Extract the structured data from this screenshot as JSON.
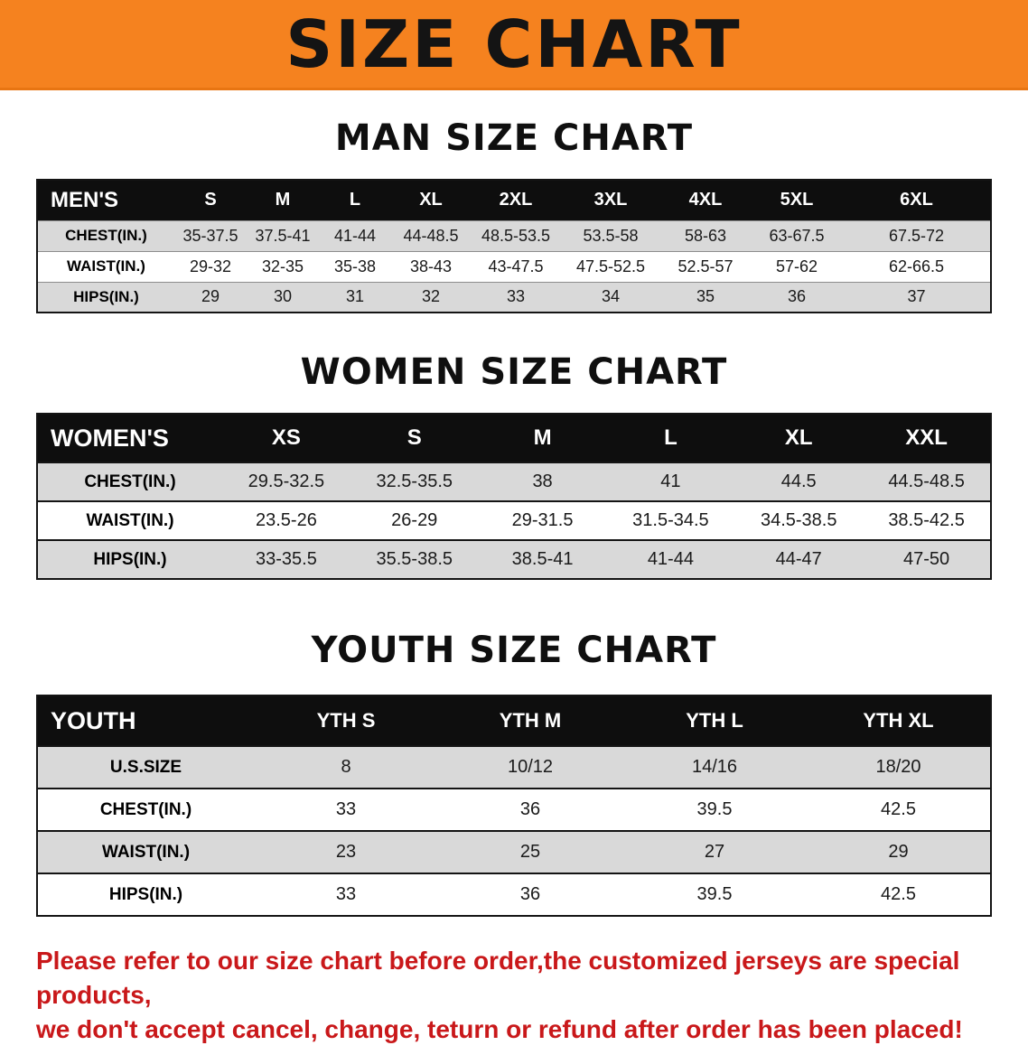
{
  "banner": {
    "title": "SIZE CHART"
  },
  "sections": [
    {
      "id": "mens",
      "title": "MAN SIZE CHART",
      "header": [
        "MEN'S",
        "S",
        "M",
        "L",
        "XL",
        "2XL",
        "3XL",
        "4XL",
        "5XL",
        "6XL"
      ],
      "rows": [
        {
          "label": "CHEST(IN.)",
          "values": [
            "35-37.5",
            "37.5-41",
            "41-44",
            "44-48.5",
            "48.5-53.5",
            "53.5-58",
            "58-63",
            "63-67.5",
            "67.5-72"
          ]
        },
        {
          "label": "WAIST(IN.)",
          "values": [
            "29-32",
            "32-35",
            "35-38",
            "38-43",
            "43-47.5",
            "47.5-52.5",
            "52.5-57",
            "57-62",
            "62-66.5"
          ]
        },
        {
          "label": "HIPS(IN.)",
          "values": [
            "29",
            "30",
            "31",
            "32",
            "33",
            "34",
            "35",
            "36",
            "37"
          ]
        }
      ]
    },
    {
      "id": "womens",
      "title": "WOMEN SIZE CHART",
      "header": [
        "WOMEN'S",
        "XS",
        "S",
        "M",
        "L",
        "XL",
        "XXL"
      ],
      "rows": [
        {
          "label": "CHEST(IN.)",
          "values": [
            "29.5-32.5",
            "32.5-35.5",
            "38",
            "41",
            "44.5",
            "44.5-48.5"
          ]
        },
        {
          "label": "WAIST(IN.)",
          "values": [
            "23.5-26",
            "26-29",
            "29-31.5",
            "31.5-34.5",
            "34.5-38.5",
            "38.5-42.5"
          ]
        },
        {
          "label": "HIPS(IN.)",
          "values": [
            "33-35.5",
            "35.5-38.5",
            "38.5-41",
            "41-44",
            "44-47",
            "47-50"
          ]
        }
      ]
    },
    {
      "id": "youth",
      "title": "YOUTH SIZE CHART",
      "header": [
        "YOUTH",
        "YTH S",
        "YTH M",
        "YTH L",
        "YTH XL"
      ],
      "rows": [
        {
          "label": "U.S.SIZE",
          "values": [
            "8",
            "10/12",
            "14/16",
            "18/20"
          ]
        },
        {
          "label": "CHEST(IN.)",
          "values": [
            "33",
            "36",
            "39.5",
            "42.5"
          ]
        },
        {
          "label": "WAIST(IN.)",
          "values": [
            "23",
            "25",
            "27",
            "29"
          ]
        },
        {
          "label": "HIPS(IN.)",
          "values": [
            "33",
            "36",
            "39.5",
            "42.5"
          ]
        }
      ]
    }
  ],
  "disclaimer": {
    "line1": "Please refer to our size chart before order,the customized jerseys are special products,",
    "line2": "we don't accept cancel, change, teturn or refund after order has been placed!"
  },
  "colors": {
    "banner_orange": "#f5821f",
    "table_header_black": "#0e0e0e",
    "row_shade_gray": "#d9d9d9",
    "disclaimer_red": "#c9181a"
  }
}
